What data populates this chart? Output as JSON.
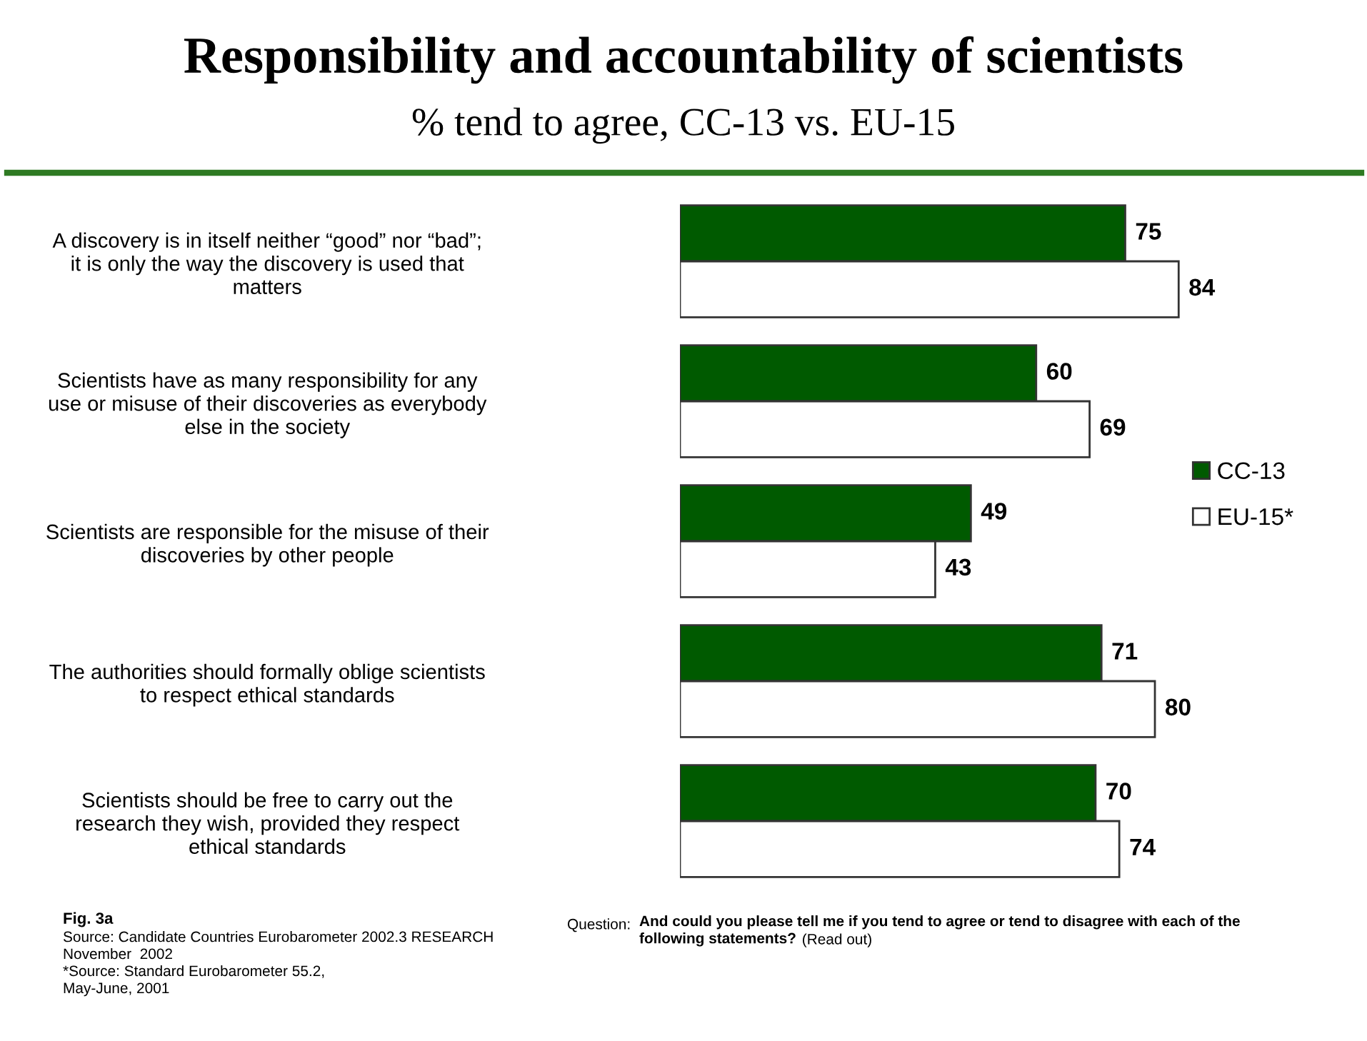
{
  "chart_data": {
    "type": "bar",
    "orientation": "horizontal",
    "title": "Responsibility and accountability of scientists",
    "subtitle": "% tend to agree, CC-13 vs. EU-15",
    "categories": [
      "A discovery is in itself neither “good” nor “bad”;\nit is only the way the discovery is used that\nmatters",
      "Scientists have as many responsibility for any\nuse or misuse of their discoveries as everybody\nelse in the society",
      "Scientists are responsible for the misuse of their\ndiscoveries by other people",
      "The authorities should formally oblige scientists\nto respect ethical standards",
      "Scientists should be free to carry out the\nresearch they wish, provided they respect\nethical standards"
    ],
    "series": [
      {
        "name": "CC-13",
        "color": "#005a00",
        "values": [
          75,
          60,
          49,
          71,
          70
        ]
      },
      {
        "name": "EU-15*",
        "color": "#ffffff",
        "values": [
          84,
          69,
          43,
          80,
          74
        ]
      }
    ],
    "data_labels": true,
    "legend": "right",
    "grid": false,
    "annotations": [
      "Fig. 3a",
      "Source: Candidate Countries Eurobarometer 2002.3 RESEARCH\nNovember  2002\n*Source: Standard Eurobarometer 55.2,\nMay-June, 2001",
      "Question:",
      "And could you please tell me if you tend to agree or tend to disagree with each of the\nfollowing statements?",
      "(Read out)"
    ]
  }
}
